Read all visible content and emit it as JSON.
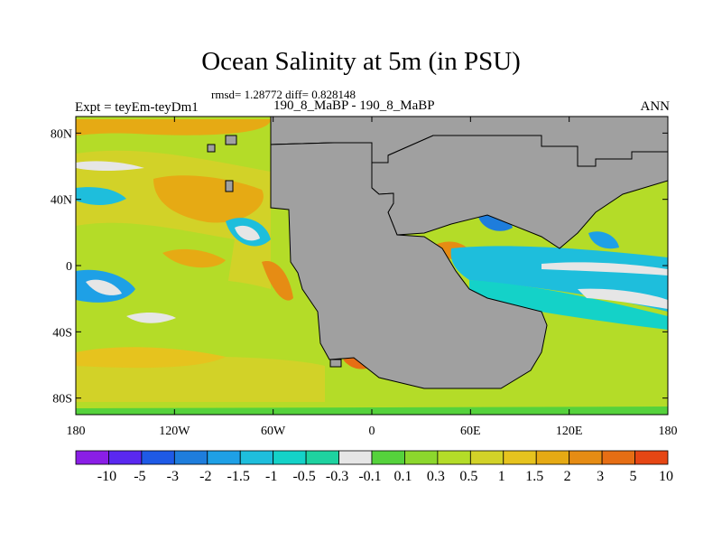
{
  "title": "Ocean Salinity at 5m (in PSU)",
  "stats_line": "rmsd= 1.28772 diff= 0.828148",
  "experiment_label": "Expt = teyEm-teyDm1",
  "difference_label": "190_8_MaBP - 190_8_MaBP",
  "season_label": "ANN",
  "latitude_ticks": [
    {
      "label": "80N",
      "value": 80
    },
    {
      "label": "40N",
      "value": 40
    },
    {
      "label": "0",
      "value": 0
    },
    {
      "label": "40S",
      "value": -40
    },
    {
      "label": "80S",
      "value": -80
    }
  ],
  "longitude_ticks": [
    {
      "label": "180",
      "value": -180
    },
    {
      "label": "120W",
      "value": -120
    },
    {
      "label": "60W",
      "value": -60
    },
    {
      "label": "0",
      "value": 0
    },
    {
      "label": "60E",
      "value": 60
    },
    {
      "label": "120E",
      "value": 120
    },
    {
      "label": "180",
      "value": 180
    }
  ],
  "colorbar": {
    "colors": [
      "#8a1ee6",
      "#5a28f0",
      "#1e5ae6",
      "#1e7ddc",
      "#1ea0e6",
      "#1ebedc",
      "#14d2c8",
      "#1ed2a0",
      "#e6e6e6",
      "#55d23c",
      "#8cd72d",
      "#b4dc28",
      "#d2d228",
      "#e6c31e",
      "#e6aa14",
      "#e68c14",
      "#e66e14",
      "#e64614"
    ],
    "labels": [
      "-10",
      "-5",
      "-3",
      "-2",
      "-1.5",
      "-1",
      "-0.5",
      "-0.3",
      "-0.1",
      "0.1",
      "0.3",
      "0.5",
      "1",
      "1.5",
      "2",
      "3",
      "5",
      "10"
    ]
  },
  "land_color": "#a0a0a0"
}
